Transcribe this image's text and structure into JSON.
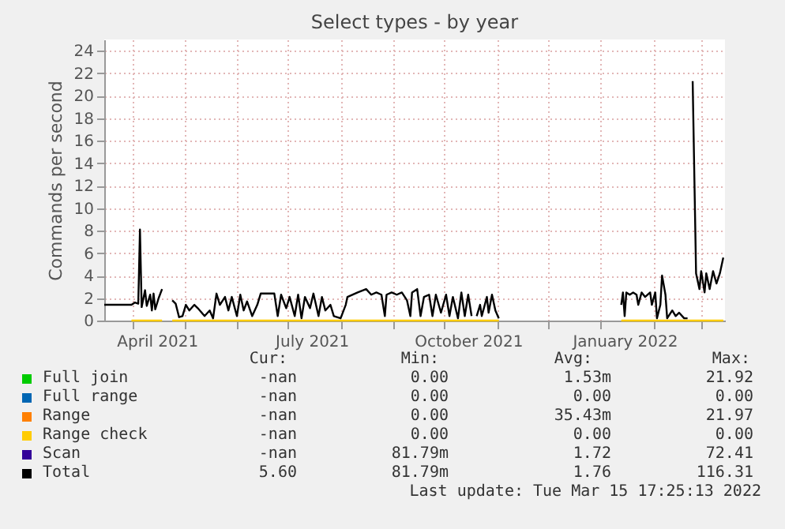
{
  "chart_data": {
    "type": "line",
    "title": "Select types - by year",
    "ylabel": "Commands per second",
    "xlim": [
      "2021-03-15",
      "2022-03-15"
    ],
    "xticks": [
      {
        "value": "2021-04-01",
        "label": null
      },
      {
        "value": "2021-05-01",
        "label": null
      },
      {
        "value": "2021-06-01",
        "label": null
      },
      {
        "value": "2021-07-01",
        "label": null
      },
      {
        "value": "2021-08-01",
        "label": null
      },
      {
        "value": "2021-09-01",
        "label": null
      },
      {
        "value": "2021-10-01",
        "label": null
      },
      {
        "value": "2021-11-01",
        "label": null
      },
      {
        "value": "2021-12-01",
        "label": null
      },
      {
        "value": "2022-01-01",
        "label": null
      },
      {
        "value": "2022-02-01",
        "label": null
      },
      {
        "value": "2022-03-01",
        "label": null
      },
      {
        "value": "2021-04-15",
        "label": "April 2021"
      },
      {
        "value": "2021-07-15",
        "label": "July 2021"
      },
      {
        "value": "2021-10-15",
        "label": "October 2021"
      },
      {
        "value": "2022-01-15",
        "label": "January 2022"
      }
    ],
    "ylim": [
      0,
      25
    ],
    "yticks": [
      0,
      2,
      4,
      6,
      8,
      10,
      12,
      14,
      16,
      18,
      20,
      22,
      24
    ],
    "grid": true,
    "legend": "bottom",
    "marker": "none",
    "line_style": "solid",
    "series": [
      {
        "name": "Full join",
        "color": "#00cc00"
      },
      {
        "name": "Full range",
        "color": "#0066b3"
      },
      {
        "name": "Range",
        "color": "#ff8000"
      },
      {
        "name": "Range check",
        "color": "#ffcc00",
        "x": [
          "2021-03-31",
          "2021-04-18",
          "2021-04-21",
          "2021-04-24",
          "2021-11-02",
          "2021-11-05",
          "2022-01-13",
          "2022-03-14"
        ],
        "values": [
          0,
          0,
          null,
          0,
          0,
          null,
          0,
          0
        ]
      },
      {
        "name": "Scan",
        "color": "#330099"
      },
      {
        "name": "Total",
        "color": "#000000",
        "x": [
          "2021-03-15",
          "2021-03-31",
          "2021-04-02",
          "2021-04-04",
          "2021-04-05",
          "2021-04-06",
          "2021-04-08",
          "2021-04-09",
          "2021-04-11",
          "2021-04-12",
          "2021-04-13",
          "2021-04-14",
          "2021-04-16",
          "2021-04-18",
          "2021-04-21",
          "2021-04-24",
          "2021-04-26",
          "2021-04-28",
          "2021-04-30",
          "2021-05-02",
          "2021-05-04",
          "2021-05-07",
          "2021-05-09",
          "2021-05-13",
          "2021-05-16",
          "2021-05-18",
          "2021-05-20",
          "2021-05-22",
          "2021-05-25",
          "2021-05-27",
          "2021-05-29",
          "2021-06-01",
          "2021-06-03",
          "2021-06-05",
          "2021-06-07",
          "2021-06-10",
          "2021-06-13",
          "2021-06-15",
          "2021-06-23",
          "2021-06-25",
          "2021-06-27",
          "2021-06-30",
          "2021-07-02",
          "2021-07-05",
          "2021-07-07",
          "2021-07-09",
          "2021-07-11",
          "2021-07-14",
          "2021-07-16",
          "2021-07-19",
          "2021-07-21",
          "2021-07-23",
          "2021-07-26",
          "2021-07-28",
          "2021-08-01",
          "2021-08-04",
          "2021-08-05",
          "2021-08-11",
          "2021-08-16",
          "2021-08-19",
          "2021-08-22",
          "2021-08-25",
          "2021-08-27",
          "2021-08-28",
          "2021-08-31",
          "2021-09-03",
          "2021-09-06",
          "2021-09-09",
          "2021-09-11",
          "2021-09-12",
          "2021-09-15",
          "2021-09-17",
          "2021-09-19",
          "2021-09-22",
          "2021-09-24",
          "2021-09-26",
          "2021-09-29",
          "2021-10-02",
          "2021-10-04",
          "2021-10-06",
          "2021-10-09",
          "2021-10-11",
          "2021-10-13",
          "2021-10-15",
          "2021-10-17",
          "2021-10-19",
          "2021-10-20",
          "2021-10-22",
          "2021-10-23",
          "2021-10-26",
          "2021-10-27",
          "2021-10-29",
          "2021-10-31",
          "2021-11-02",
          "2021-11-05",
          "2022-01-13",
          "2022-01-14",
          "2022-01-15",
          "2022-01-16",
          "2022-01-18",
          "2022-01-20",
          "2022-01-22",
          "2022-01-23",
          "2022-01-25",
          "2022-01-27",
          "2022-01-30",
          "2022-01-31",
          "2022-02-02",
          "2022-02-03",
          "2022-02-05",
          "2022-02-06",
          "2022-02-08",
          "2022-02-09",
          "2022-02-12",
          "2022-02-14",
          "2022-02-16",
          "2022-02-19",
          "2022-02-21",
          "2022-02-23",
          "2022-02-24",
          "2022-02-26",
          "2022-02-28",
          "2022-03-01",
          "2022-03-03",
          "2022-03-04",
          "2022-03-06",
          "2022-03-08",
          "2022-03-10",
          "2022-03-12",
          "2022-03-14"
        ],
        "values": [
          1.4,
          1.4,
          1.6,
          1.5,
          8.1,
          1.2,
          2.7,
          1.3,
          2.3,
          0.9,
          2.4,
          1.0,
          2.0,
          2.8,
          null,
          1.8,
          1.5,
          0.3,
          0.4,
          1.4,
          0.9,
          1.4,
          1.1,
          0.4,
          0.9,
          0.2,
          2.4,
          1.4,
          2.1,
          0.9,
          2.1,
          0.4,
          2.3,
          0.9,
          1.7,
          0.4,
          1.4,
          2.4,
          2.4,
          0.4,
          2.3,
          1.1,
          2.1,
          0.4,
          2.3,
          0.2,
          2.1,
          1.1,
          2.4,
          0.4,
          2.1,
          0.9,
          1.4,
          0.4,
          0.2,
          1.4,
          2.1,
          2.5,
          2.8,
          2.3,
          2.5,
          2.3,
          0.4,
          2.3,
          2.5,
          2.3,
          2.5,
          1.8,
          0.4,
          2.5,
          2.8,
          0.4,
          2.1,
          2.3,
          0.4,
          2.3,
          0.7,
          2.3,
          0.4,
          2.1,
          0.2,
          2.5,
          0.4,
          2.3,
          0.4,
          null,
          0.4,
          1.4,
          0.4,
          2.1,
          0.7,
          2.3,
          0.9,
          0.2,
          null,
          1.4,
          2.5,
          0.4,
          2.5,
          2.3,
          2.5,
          2.3,
          1.4,
          2.5,
          2.1,
          2.5,
          1.4,
          2.5,
          0.2,
          1.4,
          4.0,
          2.3,
          0.2,
          0.9,
          0.4,
          0.7,
          0.2,
          0.2,
          null,
          21.3,
          4.2,
          2.8,
          4.4,
          2.5,
          4.2,
          2.8,
          4.4,
          3.3,
          4.2,
          5.6
        ]
      }
    ],
    "annotations": [
      "Cur:",
      "Min:",
      "Avg:",
      "Max:",
      "-nan",
      "0.00",
      "1.53m",
      "21.92",
      "-nan",
      "0.00",
      "0.00",
      "0.00",
      "-nan",
      "0.00",
      "35.43m",
      "21.97",
      "-nan",
      "0.00",
      "0.00",
      "0.00",
      "-nan",
      "81.79m",
      "1.72",
      "72.41",
      "5.60",
      "81.79m",
      "1.76",
      "116.31",
      "Last update: Tue Mar 15 17:25:13 2022"
    ]
  }
}
